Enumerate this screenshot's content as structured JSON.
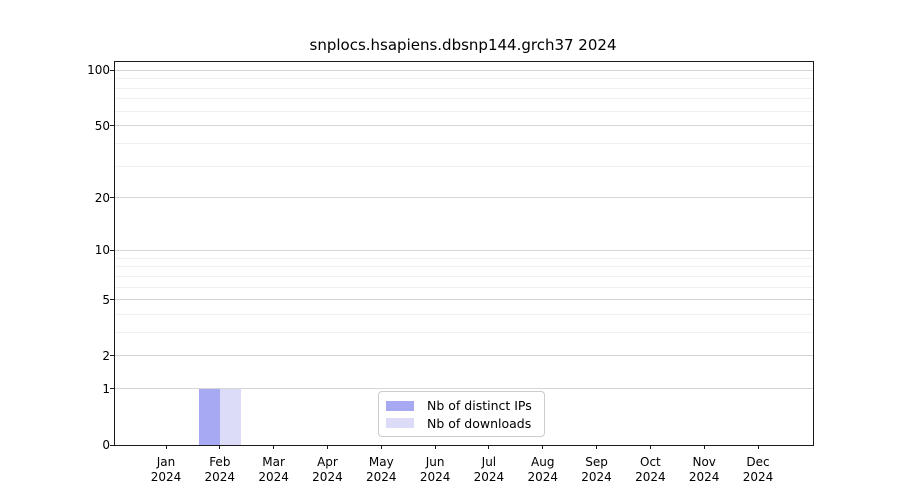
{
  "chart_data": {
    "type": "bar",
    "title": "snplocs.hsapiens.dbsnp144.grch37 2024",
    "categories": [
      "Jan",
      "Feb",
      "Mar",
      "Apr",
      "May",
      "Jun",
      "Jul",
      "Aug",
      "Sep",
      "Oct",
      "Nov",
      "Dec"
    ],
    "year": "2024",
    "series": [
      {
        "name": "Nb of distinct IPs",
        "color": "#a7a9f2",
        "values": [
          0,
          1,
          0,
          0,
          0,
          0,
          0,
          0,
          0,
          0,
          0,
          0
        ]
      },
      {
        "name": "Nb of downloads",
        "color": "#dcdcf9",
        "values": [
          0,
          1,
          0,
          0,
          0,
          0,
          0,
          0,
          0,
          0,
          0,
          0
        ]
      }
    ],
    "yscale": "log1p",
    "ylim": [
      0,
      111
    ],
    "y_major_ticks": [
      0,
      1,
      2,
      5,
      10,
      20,
      50,
      100
    ],
    "y_tick_labels": [
      "0",
      "1",
      "2",
      "5",
      "10",
      "20",
      "50",
      "100"
    ],
    "y_minor_ticks": [
      3,
      4,
      6,
      7,
      8,
      9,
      30,
      40,
      60,
      70,
      80,
      90
    ],
    "xlabel": "",
    "ylabel": "",
    "grid": "horizontal",
    "legend_position": "lower center"
  }
}
